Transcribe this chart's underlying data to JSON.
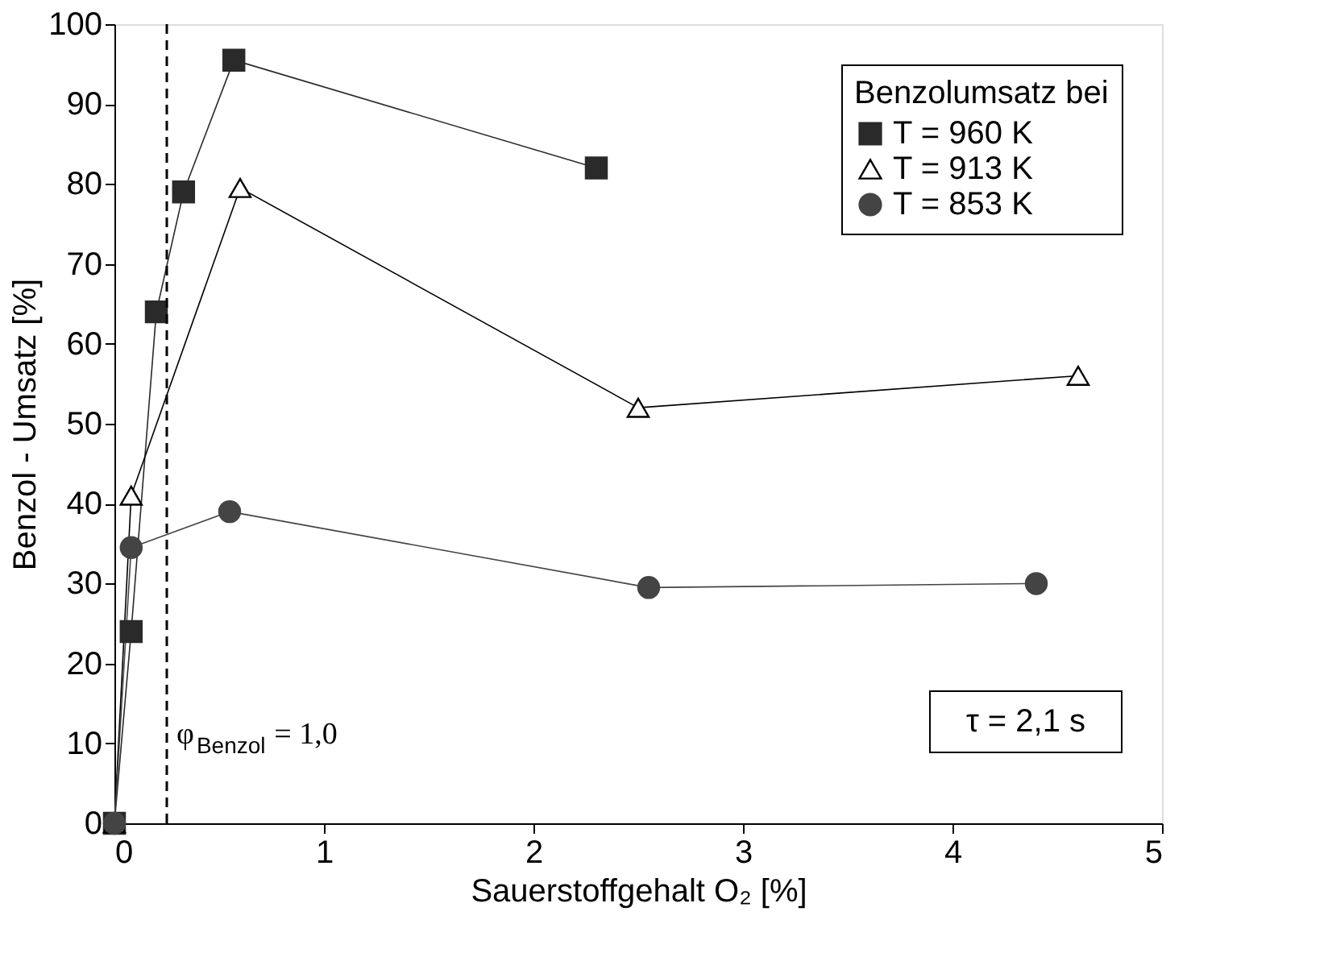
{
  "chart_data": {
    "type": "line",
    "xlabel": "Sauerstoffgehalt O₂ [%]",
    "ylabel": "Benzol - Umsatz [%]",
    "legend_title": "Benzolumsatz bei",
    "series": [
      {
        "name": "T = 960 K",
        "color": "#2a2a2a",
        "marker": "square",
        "x": [
          0,
          0.08,
          0.2,
          0.33,
          0.57,
          2.3
        ],
        "values": [
          0,
          24,
          64,
          79,
          95.5,
          82
        ]
      },
      {
        "name": "T = 913 K",
        "color": "#000000",
        "marker": "triangle",
        "x": [
          0,
          0.08,
          0.6,
          2.5,
          4.6
        ],
        "values": [
          0,
          41,
          79.5,
          52,
          56
        ]
      },
      {
        "name": "T = 853 K",
        "color": "#444444",
        "marker": "circle",
        "x": [
          0,
          0.08,
          0.55,
          2.55,
          4.4
        ],
        "values": [
          0,
          34.5,
          39,
          29.5,
          30
        ]
      }
    ],
    "xlim": [
      0,
      5
    ],
    "xticks": [
      0,
      1,
      2,
      3,
      4,
      5
    ],
    "ylim": [
      0,
      100
    ],
    "yticks": [
      0,
      10,
      20,
      30,
      40,
      50,
      60,
      70,
      80,
      90,
      100
    ],
    "ref_lines": [
      {
        "axis": "x",
        "value": 0.25,
        "line_style": "dashed",
        "color": "#000000"
      }
    ],
    "annotations": [
      "τ = 2,1 s",
      {
        "text": "φ$_{Benzol}$ = 1,0",
        "x": 0.25,
        "y": 10
      }
    ],
    "grid": false,
    "legend": "top right",
    "line_style": "solid"
  }
}
